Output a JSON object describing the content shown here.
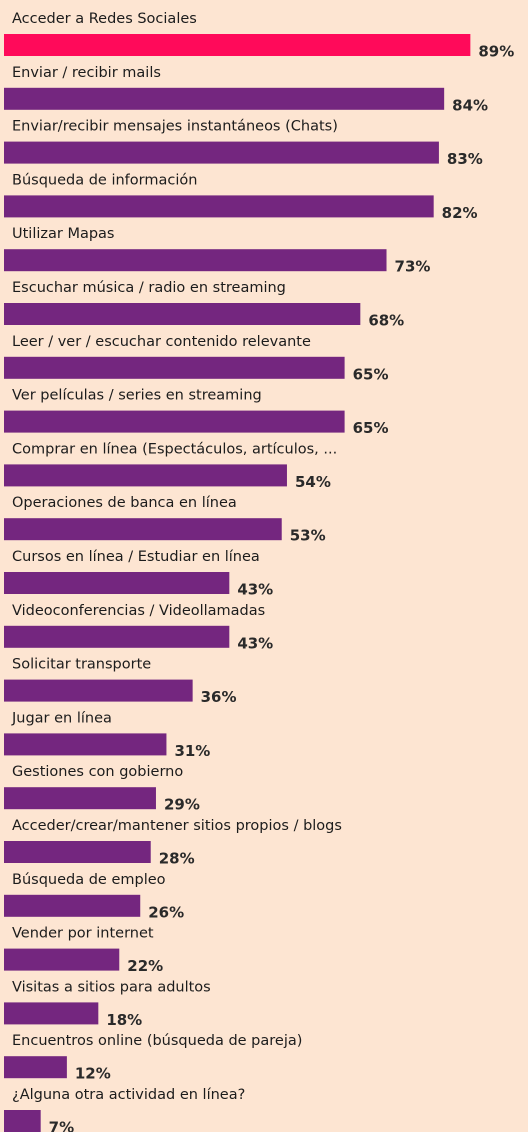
{
  "chart_data": {
    "type": "hbar",
    "categories": [
      "Acceder a Redes Sociales",
      "Enviar / recibir mails",
      "Enviar/recibir mensajes instantáneos (Chats)",
      "Búsqueda de información",
      "Utilizar Mapas",
      "Escuchar música / radio en streaming",
      "Leer / ver / escuchar contenido relevante",
      "Ver películas / series en streaming",
      "Comprar en línea (Espectáculos, artículos, ...",
      "Operaciones de banca en línea",
      "Cursos en línea / Estudiar en línea",
      "Videoconferencias / Videollamadas",
      "Solicitar transporte",
      "Jugar en línea",
      "Gestiones con gobierno",
      "Acceder/crear/mantener sitios propios / blogs",
      "Búsqueda de empleo",
      "Vender por internet",
      "Visitas a sitios para adultos",
      "Encuentros online (búsqueda de pareja)",
      "¿Alguna otra actividad en línea?"
    ],
    "values": [
      89,
      84,
      83,
      82,
      73,
      68,
      65,
      65,
      54,
      53,
      43,
      43,
      36,
      31,
      29,
      28,
      26,
      22,
      18,
      12,
      7
    ],
    "value_labels": [
      "89%",
      "84%",
      "83%",
      "82%",
      "73%",
      "68%",
      "65%",
      "65%",
      "54%",
      "53%",
      "43%",
      "43%",
      "36%",
      "31%",
      "29%",
      "28%",
      "26%",
      "22%",
      "18%",
      "12%",
      "7%"
    ],
    "colors": [
      "#ff0a5a",
      "#74267f",
      "#74267f",
      "#74267f",
      "#74267f",
      "#74267f",
      "#74267f",
      "#74267f",
      "#74267f",
      "#74267f",
      "#74267f",
      "#74267f",
      "#74267f",
      "#74267f",
      "#74267f",
      "#74267f",
      "#74267f",
      "#74267f",
      "#74267f",
      "#74267f",
      "#74267f"
    ],
    "xlim": [
      0,
      100
    ]
  }
}
